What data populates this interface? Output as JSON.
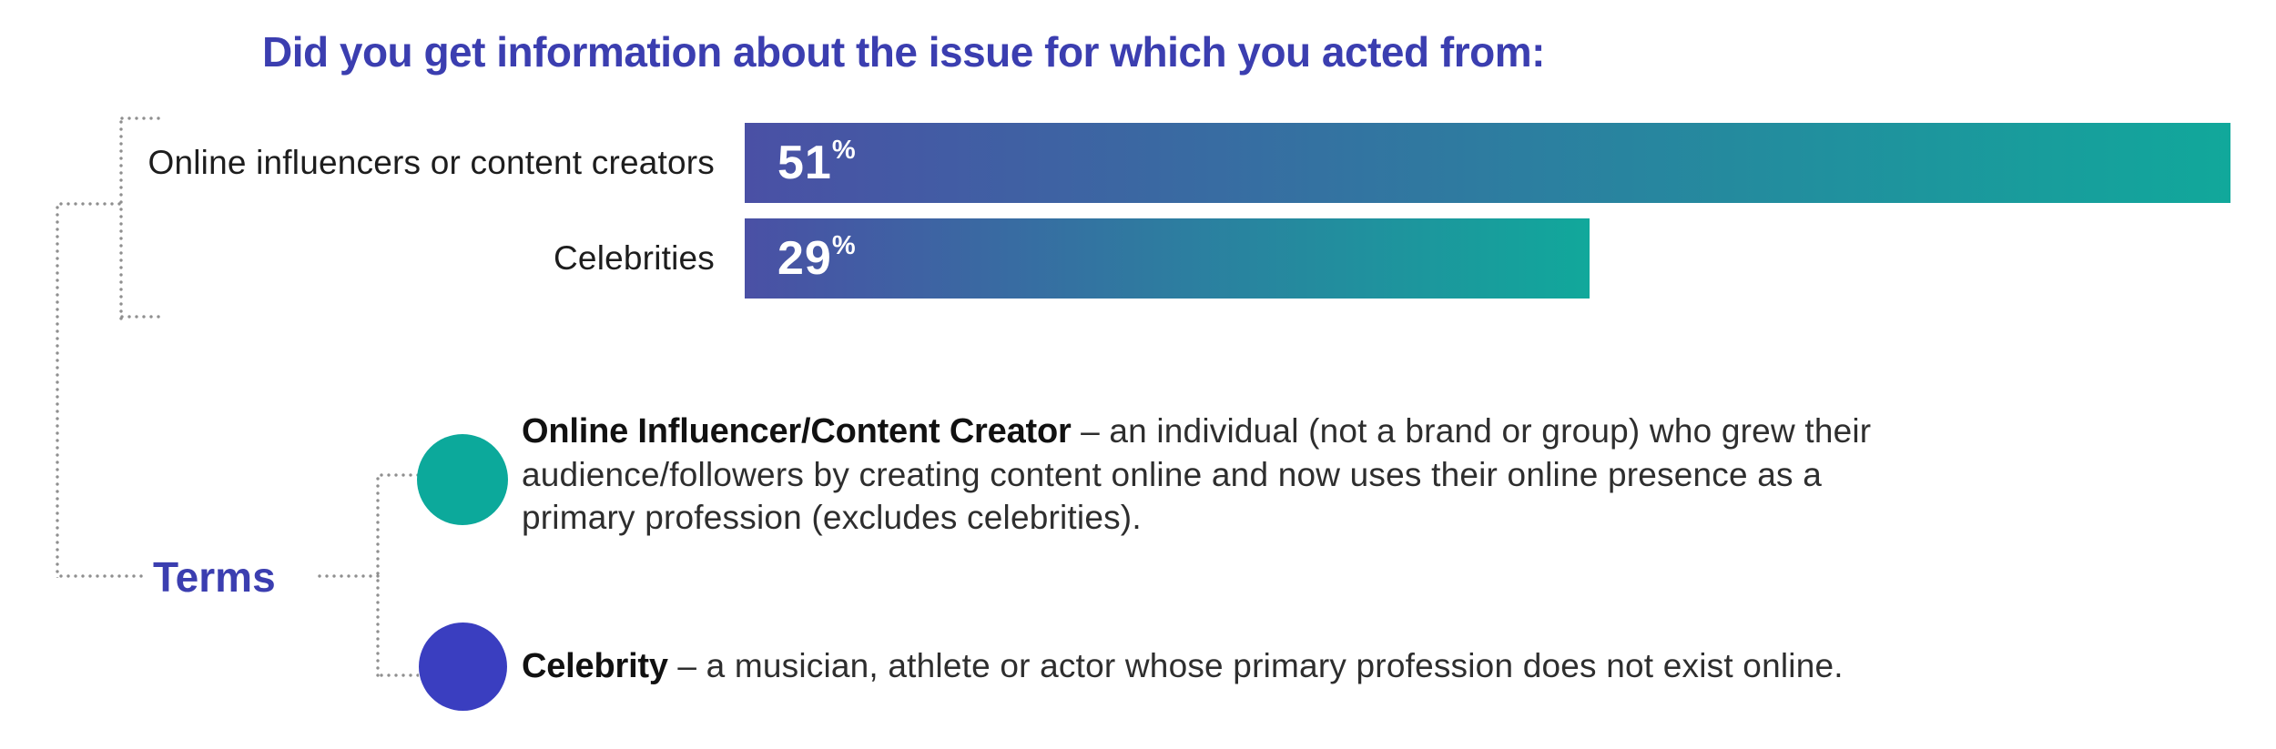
{
  "chart_data": {
    "type": "bar",
    "orientation": "horizontal",
    "title": "Did you get information about the issue for which you acted from:",
    "categories": [
      "Online influencers or content creators",
      "Celebrities"
    ],
    "values": [
      51,
      29
    ],
    "unit": "%",
    "xlim": [
      0,
      51
    ],
    "grid": false,
    "legend": false,
    "bar_gradient": [
      "#4a50a5",
      "#11a89b"
    ],
    "value_label_color": "#ffffff",
    "value_label_position": "inside-start"
  },
  "terms": {
    "label": "Terms",
    "items": [
      {
        "term": "Online Influencer/Content Creator",
        "definition_lines": [
          "– an individual (not a brand or group) who grew their",
          "audience/followers by creating content online and now uses their online presence as a",
          "primary profession (excludes celebrities)."
        ],
        "bullet_color": "#0ca99b"
      },
      {
        "term": "Celebrity",
        "definition_lines": [
          "– a musician, athlete or actor whose primary profession does not exist online."
        ],
        "bullet_color": "#3a3ec0"
      }
    ]
  },
  "colors": {
    "heading": "#3b3eb0",
    "label_text": "#1d1d1d",
    "body_text": "#2e2e2e",
    "bold_text": "#111111",
    "dots": "#8f8f8f",
    "background": "#ffffff"
  }
}
